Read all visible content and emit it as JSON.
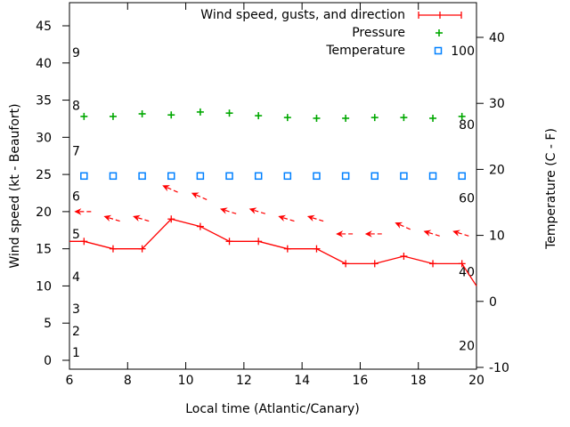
{
  "axes": {
    "x": {
      "title": "Local time (Atlantic/Canary)",
      "tick_values": [
        6,
        8,
        10,
        12,
        14,
        16,
        18,
        20
      ],
      "range": [
        6,
        20
      ]
    },
    "y_left": {
      "title": "Wind speed (kt - Beaufort)",
      "tick_values": [
        0,
        5,
        10,
        15,
        20,
        25,
        30,
        35,
        40,
        45
      ],
      "range": [
        -1.2,
        48.1
      ]
    },
    "y_right": {
      "title": "Temperature (C - F)",
      "tick_values": [
        -10,
        0,
        10,
        20,
        30,
        40
      ],
      "range": [
        -10.3,
        45.4
      ]
    },
    "beaufort_scale": {
      "labels": [
        "1",
        "2",
        "3",
        "4",
        "5",
        "6",
        "7",
        "8",
        "9"
      ],
      "kt_positions": [
        1.1,
        3.95,
        6.95,
        11.25,
        17.0,
        22.1,
        28.2,
        34.3,
        41.4
      ]
    },
    "pressure_scale": {
      "labels": [
        "20",
        "40",
        "60",
        "80",
        "100"
      ],
      "values": [
        20,
        40,
        60,
        80,
        100
      ]
    }
  },
  "legend": {
    "entries": [
      {
        "label": "Wind speed, gusts, and direction",
        "key": "red-errorbar",
        "color": "#ff0000"
      },
      {
        "label": "Pressure",
        "key": "green-plus",
        "color": "#00a800"
      },
      {
        "label": "Temperature",
        "key": "blue-square",
        "color": "#0080ff"
      }
    ]
  },
  "colors": {
    "wind": "#ff0000",
    "pressure": "#00a800",
    "temperature": "#0080ff",
    "axis": "#000000",
    "background": "#ffffff"
  },
  "chart_data": {
    "type": "line",
    "title": "",
    "xlabel": "Local time (Atlantic/Canary)",
    "ylabel_left": "Wind speed (kt - Beaufort)",
    "ylabel_right": "Temperature (C - F)",
    "x_range": [
      6,
      20
    ],
    "x_ticks": [
      6,
      8,
      10,
      12,
      14,
      16,
      18,
      20
    ],
    "y_left_ticks": [
      0,
      5,
      10,
      15,
      20,
      25,
      30,
      35,
      40,
      45
    ],
    "y_right_ticks": [
      -10,
      0,
      10,
      20,
      30,
      40
    ],
    "grid": false,
    "legend_position": "top-right-inside",
    "series": [
      {
        "name": "Wind speed, gusts, and direction",
        "type": "line+plus-markers",
        "axis": "left",
        "color": "#ff0000",
        "x": [
          6,
          6.5,
          7.5,
          8.5,
          9.5,
          10.5,
          11.5,
          12.5,
          13.5,
          14.5,
          15.5,
          16.5,
          17.5,
          18.5,
          19.5,
          20
        ],
        "values": [
          16,
          16,
          15,
          15,
          19,
          18,
          16,
          16,
          15,
          15,
          13,
          13,
          14,
          13,
          13,
          10
        ],
        "marker_x": [
          6.5,
          7.5,
          8.5,
          9.5,
          10.5,
          11.5,
          12.5,
          13.5,
          14.5,
          15.5,
          16.5,
          17.5,
          18.5,
          19.5
        ]
      },
      {
        "name": "Wind gusts and direction arrows",
        "type": "direction-arrows",
        "axis": "left",
        "color": "#ff0000",
        "x": [
          6.5,
          7.5,
          8.5,
          9.5,
          10.5,
          11.5,
          12.5,
          13.5,
          14.5,
          15.5,
          16.5,
          17.5,
          18.5,
          19.5
        ],
        "values": [
          20,
          19,
          19,
          23,
          22,
          20,
          20,
          19,
          19,
          17,
          17,
          18,
          17,
          17
        ],
        "rotation_deg": [
          0,
          17,
          17,
          24,
          24,
          17,
          17,
          17,
          17,
          0,
          0,
          24,
          17,
          17
        ]
      },
      {
        "name": "Pressure",
        "type": "scatter-plus",
        "axis": "inner-pressure",
        "color": "#00a800",
        "x": [
          6.5,
          7.5,
          8.5,
          9.5,
          10.5,
          11.5,
          12.5,
          13.5,
          14.5,
          15.5,
          16.5,
          17.5,
          18.5,
          19.5
        ],
        "values": [
          82.2,
          82.2,
          82.9,
          82.6,
          83.4,
          83.1,
          82.4,
          81.9,
          81.7,
          81.7,
          81.9,
          81.9,
          81.7,
          82.2
        ]
      },
      {
        "name": "Temperature",
        "type": "scatter-square",
        "axis": "right",
        "color": "#0080ff",
        "x": [
          6.5,
          7.5,
          8.5,
          9.5,
          10.5,
          11.5,
          12.5,
          13.5,
          14.5,
          15.5,
          16.5,
          17.5,
          18.5,
          19.5
        ],
        "values": [
          19,
          19,
          19,
          19,
          19,
          19,
          19,
          19,
          19,
          19,
          19,
          19,
          19,
          19
        ]
      }
    ]
  }
}
